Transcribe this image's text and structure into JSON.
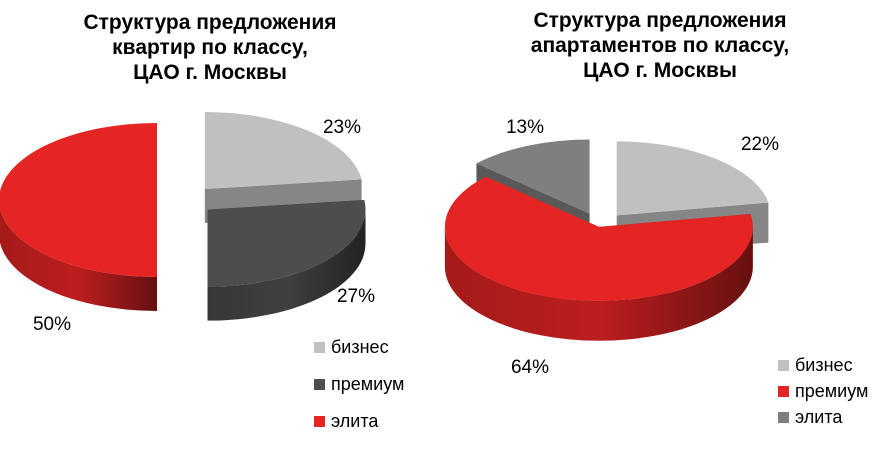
{
  "chart_data": [
    {
      "type": "pie",
      "title_lines": [
        "Структура предложения",
        "квартир по классу,",
        "ЦАО г. Москвы"
      ],
      "categories": [
        "бизнес",
        "премиум",
        "элита"
      ],
      "values": [
        23,
        27,
        50
      ],
      "labels": [
        "23%",
        "27%",
        "50%"
      ],
      "colors": [
        "#c0c0c0",
        "#4d4d4d",
        "#e52424"
      ],
      "legend": "bottom-right"
    },
    {
      "type": "pie",
      "title_lines": [
        "Структура предложения",
        "апартаментов по классу,",
        "ЦАО г. Москвы"
      ],
      "categories": [
        "бизнес",
        "премиум",
        "элита"
      ],
      "values": [
        22,
        64,
        13
      ],
      "labels": [
        "22%",
        "64%",
        "13%"
      ],
      "colors": [
        "#c0c0c0",
        "#e52424",
        "#7f7f7f"
      ],
      "legend": "bottom-right"
    }
  ]
}
